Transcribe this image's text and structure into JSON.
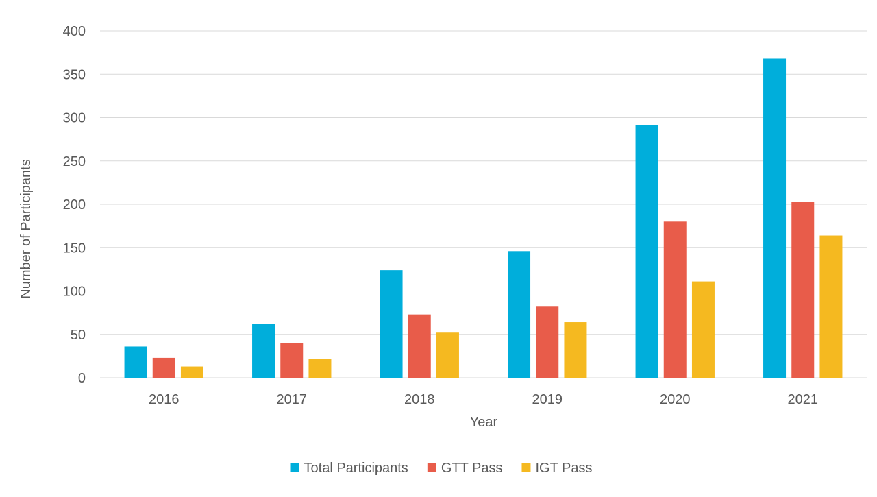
{
  "chart_data": {
    "type": "bar",
    "title": "",
    "xlabel": "Year",
    "ylabel": "Number of Participants",
    "ylim": [
      0,
      400
    ],
    "ytick_step": 50,
    "grid": true,
    "legend_position": "bottom",
    "categories": [
      "2016",
      "2017",
      "2018",
      "2019",
      "2020",
      "2021"
    ],
    "series": [
      {
        "name": "Total Participants",
        "color": "#00AEDB",
        "values": [
          36,
          62,
          124,
          146,
          291,
          368
        ]
      },
      {
        "name": "GTT Pass",
        "color": "#E85C4A",
        "values": [
          23,
          40,
          73,
          82,
          180,
          203
        ]
      },
      {
        "name": "IGT Pass",
        "color": "#F5B920",
        "values": [
          13,
          22,
          52,
          64,
          111,
          164
        ]
      }
    ],
    "colors": {
      "grid": "#D9D9D9",
      "text": "#595959"
    }
  }
}
